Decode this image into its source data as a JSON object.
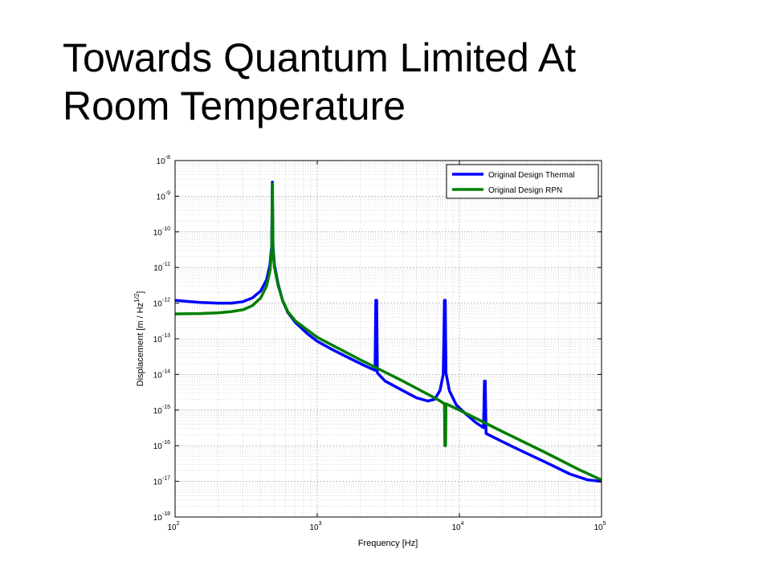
{
  "slide": {
    "title_line1": "Towards Quantum Limited At",
    "title_line2": "Room Temperature"
  },
  "chart_data": {
    "type": "line",
    "title": "",
    "xlabel": "Frequency [Hz]",
    "ylabel_base": "Displacement [m / Hz",
    "ylabel_exp": "1/2",
    "ylabel_close": "]",
    "xscale": "log",
    "yscale": "log",
    "xlim": [
      100,
      100000
    ],
    "ylim": [
      1e-18,
      1e-08
    ],
    "x_ticks": [
      {
        "base": "10",
        "exp": "2",
        "value": 100
      },
      {
        "base": "10",
        "exp": "3",
        "value": 1000
      },
      {
        "base": "10",
        "exp": "4",
        "value": 10000
      },
      {
        "base": "10",
        "exp": "5",
        "value": 100000
      }
    ],
    "y_ticks": [
      {
        "base": "10",
        "exp": "-8",
        "value": 1e-08
      },
      {
        "base": "10",
        "exp": "-9",
        "value": 1e-09
      },
      {
        "base": "10",
        "exp": "-10",
        "value": 1e-10
      },
      {
        "base": "10",
        "exp": "-11",
        "value": 1e-11
      },
      {
        "base": "10",
        "exp": "-12",
        "value": 1e-12
      },
      {
        "base": "10",
        "exp": "-13",
        "value": 1e-13
      },
      {
        "base": "10",
        "exp": "-14",
        "value": 1e-14
      },
      {
        "base": "10",
        "exp": "-15",
        "value": 1e-15
      },
      {
        "base": "10",
        "exp": "-16",
        "value": 1e-16
      },
      {
        "base": "10",
        "exp": "-17",
        "value": 1e-17
      },
      {
        "base": "10",
        "exp": "-18",
        "value": 1e-18
      }
    ],
    "grid": true,
    "minor_grid": true,
    "legend_position": "top-right",
    "series": [
      {
        "name": "Original Design Thermal",
        "color": "#0000ff",
        "points": [
          [
            100,
            1.2e-12
          ],
          [
            150,
            1.05e-12
          ],
          [
            200,
            1e-12
          ],
          [
            250,
            1e-12
          ],
          [
            300,
            1.1e-12
          ],
          [
            350,
            1.4e-12
          ],
          [
            400,
            2.2e-12
          ],
          [
            440,
            4.5e-12
          ],
          [
            465,
            1.2e-11
          ],
          [
            478,
            4e-11
          ],
          [
            483,
            2.5e-09
          ],
          [
            488,
            4e-11
          ],
          [
            500,
            1.2e-11
          ],
          [
            530,
            3.5e-12
          ],
          [
            570,
            1.2e-12
          ],
          [
            620,
            5.5e-13
          ],
          [
            700,
            2.9e-13
          ],
          [
            850,
            1.4e-13
          ],
          [
            1000,
            8.5e-14
          ],
          [
            1300,
            4.8e-14
          ],
          [
            1700,
            2.8e-14
          ],
          [
            2200,
            1.7e-14
          ],
          [
            2550,
            1.3e-14
          ],
          [
            2580,
            1.2e-12
          ],
          [
            2620,
            1.2e-12
          ],
          [
            2650,
            1.1e-14
          ],
          [
            3000,
            6.5e-15
          ],
          [
            4000,
            3.5e-15
          ],
          [
            5000,
            2.2e-15
          ],
          [
            6000,
            1.8e-15
          ],
          [
            6700,
            2e-15
          ],
          [
            7300,
            3.5e-15
          ],
          [
            7700,
            1e-14
          ],
          [
            7850,
            1.2e-12
          ],
          [
            7950,
            1.2e-12
          ],
          [
            8050,
            1.1e-14
          ],
          [
            8500,
            3.5e-15
          ],
          [
            9500,
            1.4e-15
          ],
          [
            11000,
            8e-16
          ],
          [
            13000,
            4.5e-16
          ],
          [
            14800,
            3.2e-16
          ],
          [
            15000,
            6.5e-15
          ],
          [
            15200,
            6.5e-15
          ],
          [
            15400,
            2.2e-16
          ],
          [
            20000,
            1.3e-16
          ],
          [
            30000,
            6e-17
          ],
          [
            40000,
            3.5e-17
          ],
          [
            60000,
            1.6e-17
          ],
          [
            80000,
            1.1e-17
          ],
          [
            100000,
            1e-17
          ]
        ]
      },
      {
        "name": "Original Design RPN",
        "color": "#007f00",
        "points": [
          [
            100,
            5e-13
          ],
          [
            150,
            5.1e-13
          ],
          [
            200,
            5.3e-13
          ],
          [
            250,
            5.8e-13
          ],
          [
            300,
            6.5e-13
          ],
          [
            350,
            8.5e-13
          ],
          [
            400,
            1.4e-12
          ],
          [
            440,
            3e-12
          ],
          [
            465,
            8e-12
          ],
          [
            478,
            3e-11
          ],
          [
            483,
            2.2e-09
          ],
          [
            488,
            3e-11
          ],
          [
            500,
            1e-11
          ],
          [
            530,
            3.2e-12
          ],
          [
            570,
            1.2e-12
          ],
          [
            620,
            5.8e-13
          ],
          [
            700,
            3.2e-13
          ],
          [
            1000,
            1.1e-13
          ],
          [
            2000,
            2.6e-14
          ],
          [
            4000,
            6.5e-15
          ],
          [
            7000,
            2e-15
          ],
          [
            7850,
            1.5e-15
          ],
          [
            7900,
            1e-16
          ],
          [
            8000,
            1e-16
          ],
          [
            8050,
            1.5e-15
          ],
          [
            10000,
            1e-15
          ],
          [
            20000,
            2.5e-16
          ],
          [
            40000,
            6.5e-17
          ],
          [
            70000,
            2.1e-17
          ],
          [
            100000,
            1.1e-17
          ]
        ]
      }
    ]
  }
}
